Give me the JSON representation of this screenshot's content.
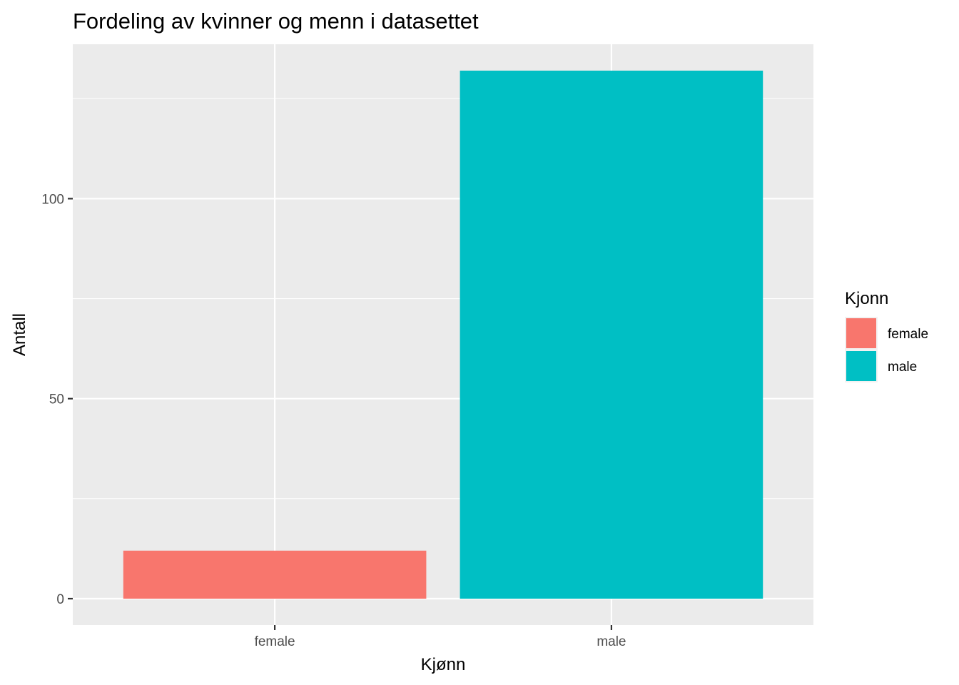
{
  "chart_data": {
    "type": "bar",
    "title": "Fordeling av kvinner og menn i datasettet",
    "xlabel": "Kjønn",
    "ylabel": "Antall",
    "categories": [
      "female",
      "male"
    ],
    "values": [
      12,
      132
    ],
    "colors": [
      "#F8766D",
      "#00BFC4"
    ],
    "ylim": [
      -6.6,
      138.6
    ],
    "yticks": [
      0,
      50,
      100
    ],
    "yticks_minor": [
      25,
      75,
      125
    ],
    "grid": true,
    "legend": {
      "title": "Kjonn",
      "position": "right",
      "entries": [
        {
          "label": "female",
          "color": "#F8766D"
        },
        {
          "label": "male",
          "color": "#00BFC4"
        }
      ]
    },
    "panel_background": "#EBEBEB"
  }
}
